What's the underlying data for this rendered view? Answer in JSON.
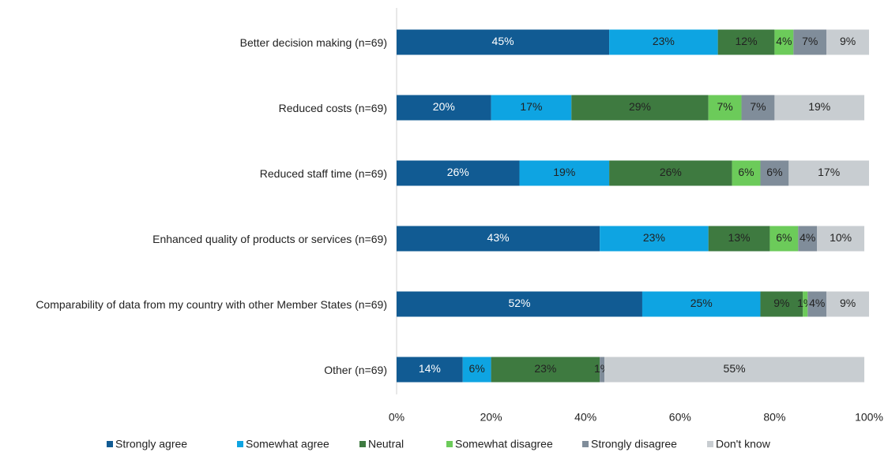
{
  "chart_data": {
    "type": "stacked_barh",
    "categories": [
      "Better decision making (n=69)",
      "Reduced costs (n=69)",
      "Reduced staff time (n=69)",
      "Enhanced quality of products or services (n=69)",
      "Comparability of data from my country with other Member States (n=69)",
      "Other (n=69)"
    ],
    "series": [
      {
        "name": "Strongly agree",
        "color": "#115b93",
        "label_color": "#ffffff",
        "values": [
          45,
          20,
          26,
          43,
          52,
          14
        ],
        "value_labels": [
          "45%",
          "20%",
          "26%",
          "43%",
          "52%",
          "14%"
        ]
      },
      {
        "name": "Somewhat agree",
        "color": "#0ea4e2",
        "label_color": "#222222",
        "values": [
          23,
          17,
          19,
          23,
          25,
          6
        ],
        "value_labels": [
          "23%",
          "17%",
          "19%",
          "23%",
          "25%",
          "6%"
        ]
      },
      {
        "name": "Neutral",
        "color": "#3e7a40",
        "label_color": "#222222",
        "values": [
          12,
          29,
          26,
          13,
          9,
          23
        ],
        "value_labels": [
          "12%",
          "29%",
          "26%",
          "13%",
          "9%",
          "23%"
        ]
      },
      {
        "name": "Somewhat disagree",
        "color": "#6ccb5a",
        "label_color": "#222222",
        "values": [
          4,
          7,
          6,
          6,
          1,
          0
        ],
        "value_labels": [
          "4%",
          "7%",
          "6%",
          "6%",
          "1%",
          null
        ]
      },
      {
        "name": "Strongly disagree",
        "color": "#808d9a",
        "label_color": "#222222",
        "values": [
          7,
          7,
          6,
          4,
          4,
          1
        ],
        "value_labels": [
          "7%",
          "7%",
          "6%",
          "4%",
          "4%",
          "1%"
        ]
      },
      {
        "name": "Don't know",
        "color": "#c8cdd1",
        "label_color": "#222222",
        "values": [
          9,
          19,
          17,
          10,
          9,
          55
        ],
        "value_labels": [
          "9%",
          "19%",
          "17%",
          "10%",
          "9%",
          "55%"
        ]
      }
    ],
    "xlim": [
      0,
      100
    ],
    "xticks": [
      {
        "value": 0,
        "label": "0%"
      },
      {
        "value": 20,
        "label": "20%"
      },
      {
        "value": 40,
        "label": "40%"
      },
      {
        "value": 60,
        "label": "60%"
      },
      {
        "value": 80,
        "label": "80%"
      },
      {
        "value": 100,
        "label": "100%"
      }
    ],
    "legend": "bottom"
  }
}
